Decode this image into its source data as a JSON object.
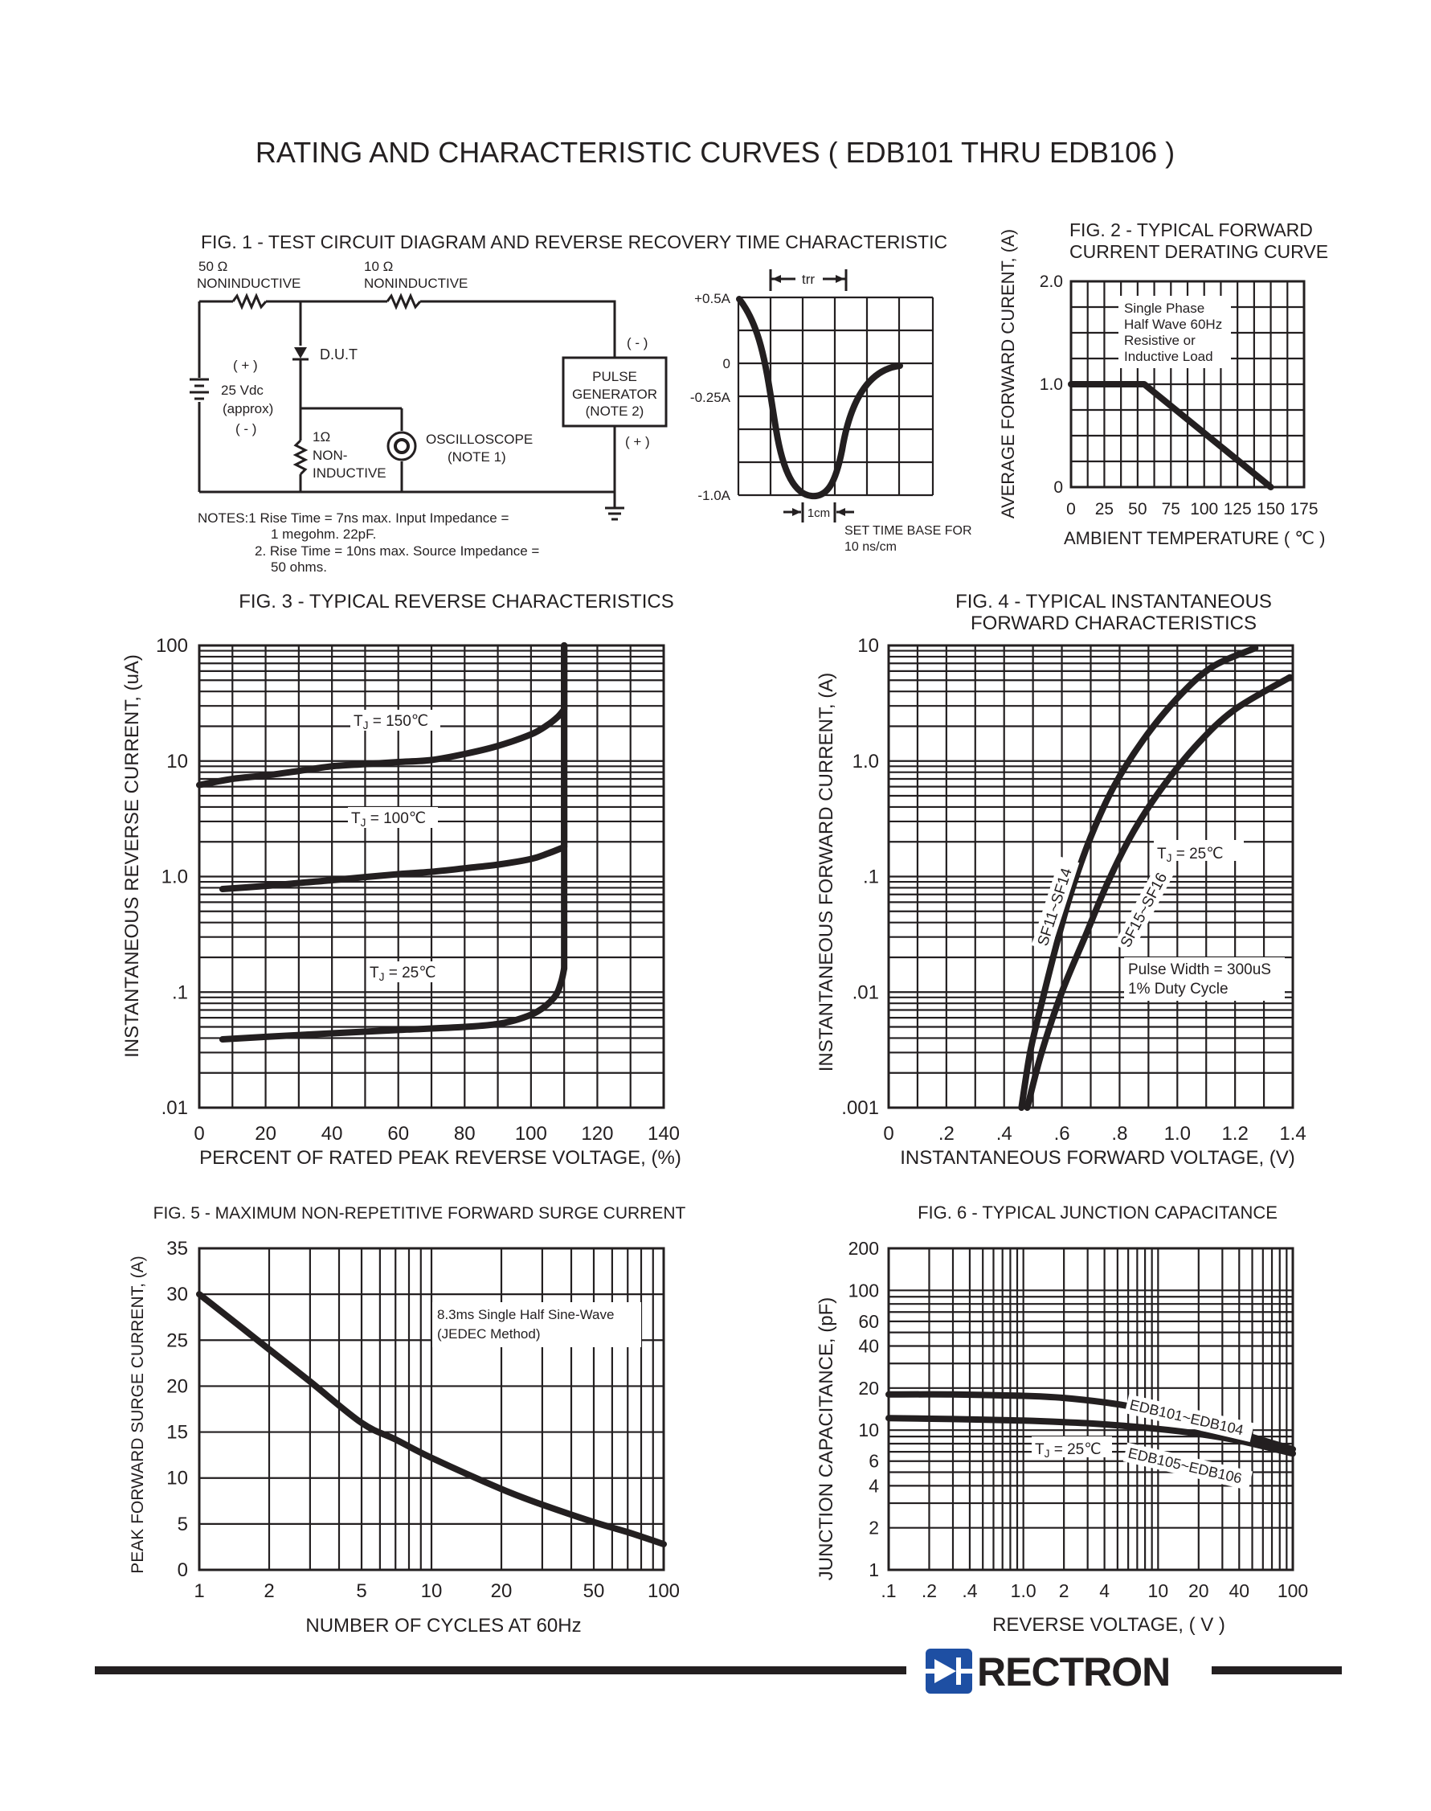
{
  "page_title": "RATING AND CHARACTERISTIC CURVES ( EDB101 THRU EDB106 )",
  "fig1": {
    "title": "FIG. 1 - TEST CIRCUIT DIAGRAM  AND REVERSE RECOVERY TIME CHARACTERISTIC",
    "r50_value": "50 Ω",
    "r50_type": "NONINDUCTIVE",
    "r10_value": "10 Ω",
    "r10_type": "NONINDUCTIVE",
    "dut": "D.U.T",
    "src_plus": "( + )",
    "src_volt": "25 Vdc",
    "src_approx": "(approx)",
    "src_minus": "( - )",
    "r1_value": "1Ω",
    "r1_type1": "NON-",
    "r1_type2": "INDUCTIVE",
    "scope": "OSCILLOSCOPE",
    "scope_note": "(NOTE 1)",
    "gen_minus": "( - )",
    "gen_l1": "PULSE",
    "gen_l2": "GENERATOR",
    "gen_l3": "(NOTE 2)",
    "gen_plus": "( + )",
    "note1_a": "NOTES:1  Rise Time = 7ns max. Input Impedance =",
    "note1_b": "1 megohm. 22pF.",
    "note2_a": "2. Rise Time = 10ns max. Source Impedance =",
    "note2_b": "50 ohms.",
    "wave_y_labels": [
      "+0.5A",
      "0",
      "-0.25A",
      "-1.0A"
    ],
    "trr_label": "trr",
    "cm_label": "1cm",
    "timebase_1": "SET TIME BASE FOR",
    "timebase_2": "10 ns/cm"
  },
  "chart_data": [
    {
      "id": "fig2",
      "type": "line",
      "title": "FIG. 2 - TYPICAL FORWARD CURRENT DERATING CURVE",
      "title_lines": [
        "FIG. 2 - TYPICAL FORWARD",
        "CURRENT DERATING CURVE"
      ],
      "xlabel": "AMBIENT TEMPERATURE ( ℃ )",
      "ylabel": "AVERAGE FORWARD CURENT, (A)",
      "x_ticks": [
        "0",
        "25",
        "50",
        "75",
        "100",
        "125",
        "150",
        "175"
      ],
      "y_ticks": [
        "0",
        "1.0",
        "2.0"
      ],
      "xlim": [
        0,
        175
      ],
      "ylim": [
        0,
        2.0
      ],
      "grid": true,
      "annotation": [
        "Single Phase",
        "Half Wave 60Hz",
        "Resistive or",
        "Inductive Load"
      ],
      "series": [
        {
          "x": [
            0,
            55,
            150
          ],
          "y": [
            1.0,
            1.0,
            0
          ]
        }
      ]
    },
    {
      "id": "fig3",
      "type": "line",
      "title": "FIG. 3 - TYPICAL REVERSE CHARACTERISTICS",
      "xlabel": "PERCENT OF RATED PEAK REVERSE VOLTAGE, (%)",
      "ylabel": "INSTANTANEOUS REVERSE CURRENT, (uA)",
      "x_ticks": [
        "0",
        "20",
        "40",
        "60",
        "80",
        "100",
        "120",
        "140"
      ],
      "y_ticks": [
        ".01",
        ".1",
        "1.0",
        "10",
        "100"
      ],
      "xlim": [
        0,
        140
      ],
      "ylim": [
        0.01,
        100
      ],
      "y_scale": "log",
      "grid": true,
      "series": [
        {
          "name": "T_J = 150℃",
          "label_parts": [
            "T",
            "J",
            " = 150℃"
          ],
          "x": [
            0,
            10,
            20,
            30,
            40,
            50,
            60,
            70,
            80,
            90,
            100,
            105,
            108,
            110,
            110
          ],
          "y": [
            6.2,
            7.0,
            7.5,
            8.2,
            9.0,
            9.4,
            9.8,
            10.2,
            11.5,
            13.5,
            17.0,
            20.5,
            24,
            28,
            100
          ]
        },
        {
          "name": "T_J = 100℃",
          "label_parts": [
            "T",
            "J",
            " = 100℃"
          ],
          "x": [
            7,
            20,
            30,
            40,
            50,
            60,
            70,
            80,
            90,
            100,
            105,
            110,
            110
          ],
          "y": [
            0.78,
            0.83,
            0.88,
            0.93,
            0.99,
            1.05,
            1.1,
            1.18,
            1.27,
            1.42,
            1.58,
            1.8,
            100
          ]
        },
        {
          "name": "T_J = 25℃",
          "label_parts": [
            "T",
            "J",
            " = 25℃"
          ],
          "x": [
            7,
            20,
            40,
            60,
            80,
            90,
            96,
            102,
            107,
            109,
            110,
            110
          ],
          "y": [
            0.039,
            0.041,
            0.044,
            0.047,
            0.05,
            0.053,
            0.058,
            0.068,
            0.09,
            0.12,
            0.16,
            100
          ]
        }
      ]
    },
    {
      "id": "fig4",
      "type": "line",
      "title": "FIG. 4 - TYPICAL INSTANTANEOUS FORWARD CHARACTERISTICS",
      "title_lines": [
        "FIG. 4 - TYPICAL INSTANTANEOUS",
        "FORWARD CHARACTERISTICS"
      ],
      "xlabel": "INSTANTANEOUS FORWARD VOLTAGE, (V)",
      "ylabel": "INSTANTANEOUS FORWARD CURRENT, (A)",
      "x_ticks": [
        "0",
        ".2",
        ".4",
        ".6",
        ".8",
        "1.0",
        "1.2",
        "1.4"
      ],
      "y_ticks": [
        ".001",
        ".01",
        ".1",
        "1.0",
        "10"
      ],
      "xlim": [
        0,
        1.4
      ],
      "ylim": [
        0.001,
        10
      ],
      "y_scale": "log",
      "grid": true,
      "tj_label": "T_J = 25℃",
      "tj_parts": [
        "T",
        "J",
        " = 25℃"
      ],
      "annotation": [
        "Pulse Width = 300uS",
        "1% Duty Cycle"
      ],
      "series": [
        {
          "name": "SF11~SF14",
          "x": [
            0.46,
            0.49,
            0.53,
            0.58,
            0.63,
            0.7,
            0.78,
            0.88,
            1.0,
            1.12,
            1.27
          ],
          "y": [
            0.001,
            0.003,
            0.008,
            0.025,
            0.07,
            0.22,
            0.6,
            1.5,
            3.5,
            6.5,
            9.5
          ]
        },
        {
          "name": "SF15~SF16",
          "x": [
            0.48,
            0.53,
            0.6,
            0.68,
            0.76,
            0.85,
            0.95,
            1.07,
            1.2,
            1.39
          ],
          "y": [
            0.001,
            0.003,
            0.01,
            0.03,
            0.09,
            0.25,
            0.6,
            1.4,
            2.8,
            5.3
          ]
        }
      ]
    },
    {
      "id": "fig5",
      "type": "line",
      "title": "FIG. 5 - MAXIMUM NON-REPETITIVE FORWARD SURGE CURRENT",
      "xlabel": "NUMBER OF CYCLES AT 60Hz",
      "ylabel": "PEAK FORWARD SURGE CURRENT, (A)",
      "x_ticks": [
        "1",
        "2",
        "5",
        "10",
        "20",
        "50",
        "100"
      ],
      "y_ticks": [
        "0",
        "5",
        "10",
        "15",
        "20",
        "25",
        "30",
        "35"
      ],
      "xlim": [
        1,
        100
      ],
      "ylim": [
        0,
        35
      ],
      "x_scale": "log",
      "grid": true,
      "annotation": [
        "8.3ms Single Half Sine-Wave",
        "(JEDEC Method)"
      ],
      "series": [
        {
          "x": [
            1,
            1.5,
            2,
            3,
            5,
            7,
            10,
            20,
            30,
            50,
            70,
            100
          ],
          "y": [
            30,
            26.5,
            24,
            20.5,
            16,
            14.2,
            12.2,
            8.8,
            7.1,
            5.2,
            4.1,
            2.8
          ]
        }
      ]
    },
    {
      "id": "fig6",
      "type": "line",
      "title": "FIG. 6 - TYPICAL JUNCTION CAPACITANCE",
      "xlabel": "REVERSE VOLTAGE, ( V )",
      "ylabel": "JUNCTION CAPACITANCE, (pF)",
      "x_ticks": [
        ".1",
        ".2",
        ".4",
        "1.0",
        "2",
        "4",
        "10",
        "20",
        "40",
        "100"
      ],
      "y_ticks": [
        "1",
        "2",
        "4",
        "6",
        "10",
        "20",
        "40",
        "60",
        "100",
        "200"
      ],
      "xlim": [
        0.1,
        100
      ],
      "ylim": [
        1,
        200
      ],
      "x_scale": "log",
      "y_scale": "log",
      "grid": true,
      "tj_label": "T_J = 25℃",
      "tj_parts": [
        "T",
        "J",
        " = 25℃"
      ],
      "series": [
        {
          "name": "EDB101~EDB104",
          "x": [
            0.1,
            0.3,
            1,
            2,
            4,
            7,
            10,
            20,
            40,
            100
          ],
          "y": [
            18,
            18,
            17.6,
            17,
            15.8,
            14.5,
            13.5,
            11.5,
            9.5,
            7.3
          ]
        },
        {
          "name": "EDB105~EDB106",
          "x": [
            0.1,
            0.3,
            1,
            2,
            4,
            10,
            20,
            40,
            100
          ],
          "y": [
            12.2,
            12.0,
            11.7,
            11.4,
            11.0,
            10.2,
            9.4,
            8.4,
            6.8
          ]
        }
      ]
    }
  ],
  "brand": {
    "name": "RECTRON",
    "color": "#1e4fa3"
  }
}
